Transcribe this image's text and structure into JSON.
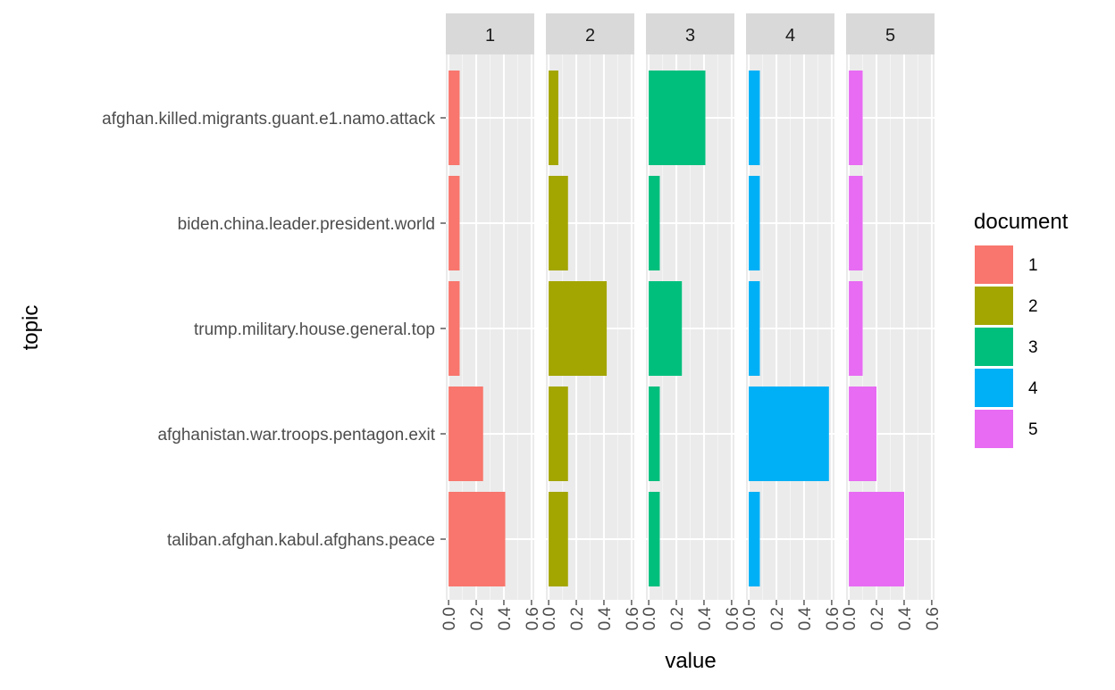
{
  "chart_data": {
    "type": "bar",
    "orientation": "horizontal",
    "facet_by": "document",
    "facets": [
      "1",
      "2",
      "3",
      "4",
      "5"
    ],
    "categories": [
      "afghan.killed.migrants.guant.e1.namo.attack",
      "biden.china.leader.president.world",
      "trump.military.house.general.top",
      "afghanistan.war.troops.pentagon.exit",
      "taliban.afghan.kabul.afghans.peace"
    ],
    "series": [
      {
        "name": "1",
        "color": "#F8766D",
        "values": [
          0.08,
          0.08,
          0.08,
          0.25,
          0.41
        ]
      },
      {
        "name": "2",
        "color": "#A3A500",
        "values": [
          0.07,
          0.14,
          0.42,
          0.14,
          0.14
        ]
      },
      {
        "name": "3",
        "color": "#00BF7D",
        "values": [
          0.41,
          0.08,
          0.24,
          0.08,
          0.08
        ]
      },
      {
        "name": "4",
        "color": "#00B0F6",
        "values": [
          0.08,
          0.08,
          0.08,
          0.58,
          0.08
        ]
      },
      {
        "name": "5",
        "color": "#E76BF3",
        "values": [
          0.1,
          0.1,
          0.1,
          0.2,
          0.4
        ]
      }
    ],
    "xlim": [
      -0.02,
      0.62
    ],
    "xticks": [
      0.0,
      0.2,
      0.4,
      0.6
    ],
    "xtick_labels": [
      "0.0",
      "0.2",
      "0.4",
      "0.6"
    ],
    "xlabel": "value",
    "ylabel": "topic",
    "legend_title": "document",
    "legend_position": "right",
    "grid": true,
    "panel_background": "#EBEBEB",
    "strip_background": "#D9D9D9"
  }
}
